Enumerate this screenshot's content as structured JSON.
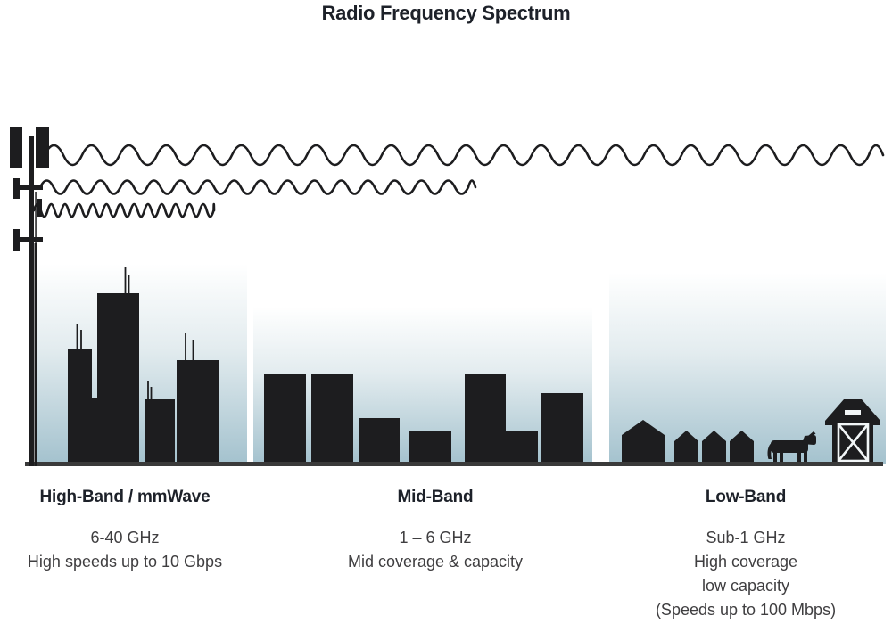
{
  "title": "Radio Frequency Spectrum",
  "colors": {
    "ink": "#1d1d1f",
    "sky_bottom": "#a4c2ce",
    "ground": "#3a3a3a",
    "heading_text": "#1d2129",
    "body_text": "#3f3e40",
    "barn_trim": "#f2f6f7"
  },
  "illustration": {
    "tower": "cell-tower",
    "waves": [
      {
        "name": "low-frequency-wave",
        "wavelength": "long",
        "reach": "farthest"
      },
      {
        "name": "mid-frequency-wave",
        "wavelength": "medium",
        "reach": "medium"
      },
      {
        "name": "high-frequency-wave",
        "wavelength": "short",
        "reach": "shortest"
      }
    ],
    "scenes": [
      "city-skyscrapers",
      "mid-rise-buildings",
      "rural-houses-cow-barn"
    ]
  },
  "bands": [
    {
      "heading": "High-Band / mmWave",
      "lines": [
        "6-40 GHz",
        "High speeds up to 10 Gbps"
      ]
    },
    {
      "heading": "Mid-Band",
      "lines": [
        "1 – 6 GHz",
        "Mid coverage & capacity"
      ]
    },
    {
      "heading": "Low-Band",
      "lines": [
        "Sub-1 GHz",
        "High coverage",
        "low capacity",
        "(Speeds up to 100 Mbps)"
      ]
    }
  ]
}
